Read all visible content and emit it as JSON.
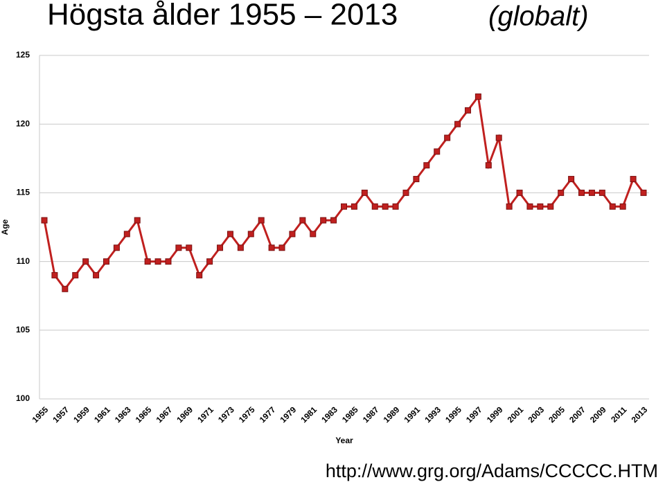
{
  "chart_data": {
    "type": "line",
    "title": "Högsta ålder 1955 – 2013",
    "title_note": "(globalt)",
    "x_label": "Year",
    "y_label": "Age",
    "source": "http://www.grg.org/Adams/CCCCC.HTM",
    "categories": [
      "1955",
      null,
      "1957",
      null,
      "1959",
      null,
      "1961",
      null,
      "1963",
      null,
      "1965",
      null,
      "1967",
      null,
      "1969",
      null,
      "1971",
      null,
      "1973",
      null,
      "1975",
      null,
      "1977",
      null,
      "1979",
      null,
      "1981",
      null,
      "1983",
      null,
      "1985",
      null,
      "1987",
      null,
      "1989",
      null,
      "1991",
      null,
      "1993",
      null,
      "1995",
      null,
      "1997",
      null,
      "1999",
      null,
      "2001",
      null,
      "2003",
      null,
      "2005",
      null,
      "2007",
      null,
      "2009",
      null,
      "2011",
      null,
      "2013"
    ],
    "series": [
      {
        "color": "#c0201f",
        "values": [
          113,
          109,
          108,
          109,
          110,
          109,
          110,
          111,
          112,
          113,
          110,
          110,
          110,
          111,
          111,
          109,
          110,
          111,
          112,
          111,
          112,
          113,
          111,
          111,
          112,
          113,
          112,
          113,
          113,
          114,
          114,
          115,
          114,
          114,
          114,
          115,
          116,
          117,
          118,
          119,
          120,
          121,
          122,
          117,
          119,
          114,
          115,
          114,
          114,
          114,
          115,
          116,
          115,
          115,
          115,
          114,
          114,
          116,
          115
        ]
      }
    ],
    "ylim": [
      100,
      125
    ],
    "yticks": [
      100,
      105,
      110,
      115,
      120,
      125
    ],
    "grid": true
  }
}
